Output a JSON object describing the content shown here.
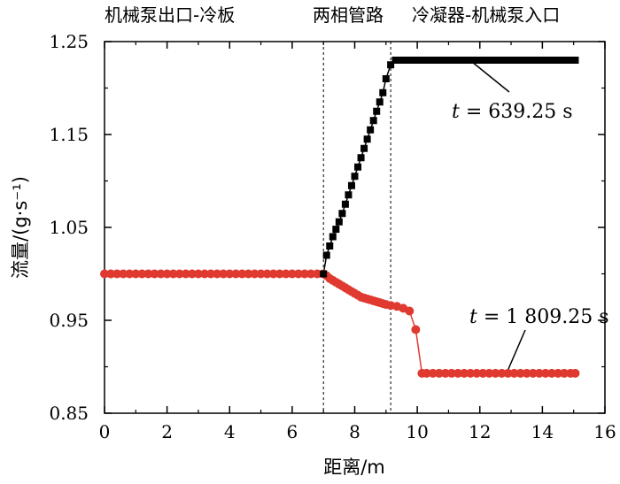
{
  "chart_data": {
    "type": "scatter",
    "region_labels": [
      "机械泵出口-冷板",
      "两相管路",
      "冷凝器-机械泵入口"
    ],
    "xlabel": "距离/m",
    "ylabel": "流量/(g·s⁻¹)",
    "xlim": [
      0,
      16
    ],
    "ylim": [
      0.85,
      1.25
    ],
    "xticks": [
      "0",
      "2",
      "4",
      "6",
      "8",
      "10",
      "12",
      "14",
      "16"
    ],
    "yticks": [
      "0.85",
      "0.95",
      "1.05",
      "1.15",
      "1.25"
    ],
    "boundaries_x": [
      7.0,
      9.15
    ],
    "grid": false,
    "series": [
      {
        "label": "t = 639.25 s",
        "color": "#000000",
        "marker": "square",
        "x": [
          7.0,
          7.1,
          7.2,
          7.3,
          7.4,
          7.5,
          7.6,
          7.7,
          7.8,
          7.9,
          8.0,
          8.1,
          8.2,
          8.3,
          8.4,
          8.5,
          8.6,
          8.7,
          8.8,
          8.9,
          9.0,
          9.15,
          9.3,
          9.5,
          9.7,
          9.9,
          10.1,
          10.3,
          10.5,
          10.7,
          10.9,
          11.1,
          11.3,
          11.5,
          11.7,
          11.9,
          12.1,
          12.3,
          12.5,
          12.7,
          12.9,
          13.1,
          13.3,
          13.5,
          13.7,
          13.9,
          14.1,
          14.3,
          14.5,
          14.7,
          14.9,
          15.05
        ],
        "values": [
          1.0,
          1.02,
          1.03,
          1.04,
          1.048,
          1.056,
          1.065,
          1.075,
          1.085,
          1.095,
          1.105,
          1.115,
          1.125,
          1.135,
          1.145,
          1.155,
          1.165,
          1.175,
          1.185,
          1.195,
          1.21,
          1.225,
          1.23,
          1.23,
          1.23,
          1.23,
          1.23,
          1.23,
          1.23,
          1.23,
          1.23,
          1.23,
          1.23,
          1.23,
          1.23,
          1.23,
          1.23,
          1.23,
          1.23,
          1.23,
          1.23,
          1.23,
          1.23,
          1.23,
          1.23,
          1.23,
          1.23,
          1.23,
          1.23,
          1.23,
          1.23,
          1.23
        ]
      },
      {
        "label": "t = 1 809.25 s",
        "color": "#e03a30",
        "marker": "circle",
        "x": [
          0.0,
          0.2,
          0.4,
          0.6,
          0.8,
          1.0,
          1.2,
          1.4,
          1.6,
          1.8,
          2.0,
          2.2,
          2.4,
          2.6,
          2.8,
          3.0,
          3.2,
          3.4,
          3.6,
          3.8,
          4.0,
          4.2,
          4.4,
          4.6,
          4.8,
          5.0,
          5.2,
          5.4,
          5.6,
          5.8,
          6.0,
          6.2,
          6.4,
          6.6,
          6.8,
          7.0,
          7.1,
          7.2,
          7.3,
          7.4,
          7.5,
          7.6,
          7.7,
          7.8,
          7.9,
          8.0,
          8.1,
          8.2,
          8.3,
          8.4,
          8.5,
          8.6,
          8.7,
          8.8,
          8.9,
          9.0,
          9.15,
          9.35,
          9.55,
          9.75,
          9.95,
          10.15,
          10.3,
          10.5,
          10.7,
          10.9,
          11.1,
          11.3,
          11.5,
          11.7,
          11.9,
          12.1,
          12.3,
          12.5,
          12.7,
          12.9,
          13.1,
          13.3,
          13.5,
          13.7,
          13.9,
          14.1,
          14.3,
          14.5,
          14.7,
          14.9,
          15.05
        ],
        "values": [
          1.0,
          1.0,
          1.0,
          1.0,
          1.0,
          1.0,
          1.0,
          1.0,
          1.0,
          1.0,
          1.0,
          1.0,
          1.0,
          1.0,
          1.0,
          1.0,
          1.0,
          1.0,
          1.0,
          1.0,
          1.0,
          1.0,
          1.0,
          1.0,
          1.0,
          1.0,
          1.0,
          1.0,
          1.0,
          1.0,
          1.0,
          1.0,
          1.0,
          1.0,
          1.0,
          1.0,
          0.998,
          0.995,
          0.993,
          0.991,
          0.989,
          0.987,
          0.985,
          0.983,
          0.981,
          0.979,
          0.977,
          0.975,
          0.974,
          0.973,
          0.972,
          0.971,
          0.97,
          0.969,
          0.968,
          0.967,
          0.966,
          0.965,
          0.963,
          0.96,
          0.94,
          0.893,
          0.893,
          0.893,
          0.893,
          0.893,
          0.893,
          0.893,
          0.893,
          0.893,
          0.893,
          0.893,
          0.893,
          0.893,
          0.893,
          0.893,
          0.893,
          0.893,
          0.893,
          0.893,
          0.893,
          0.893,
          0.893,
          0.893,
          0.893,
          0.893,
          0.893
        ]
      }
    ]
  }
}
